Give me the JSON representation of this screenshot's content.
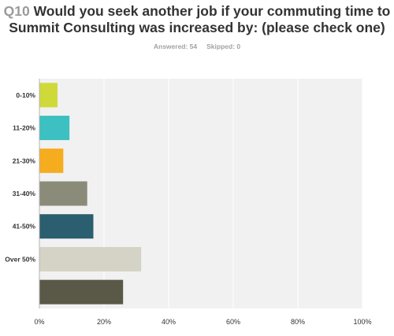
{
  "question": {
    "number": "Q10",
    "text": "Would you seek another job if your commuting time to Summit Consulting was increased by: (please check one)"
  },
  "stats": {
    "answered_label": "Answered: 54",
    "skipped_label": "Skipped: 0"
  },
  "chart_data": {
    "type": "bar",
    "orientation": "horizontal",
    "categories": [
      "0-10%",
      "11-20%",
      "21-30%",
      "31-40%",
      "41-50%",
      "Over 50%",
      ""
    ],
    "values": [
      5.6,
      9.3,
      7.4,
      14.8,
      16.7,
      31.5,
      25.9
    ],
    "colors": [
      "#cfda3a",
      "#3cc0c1",
      "#f5ac1f",
      "#8b8b7a",
      "#2b5e6e",
      "#d4d3c5",
      "#5a5847"
    ],
    "xlim": [
      0,
      100
    ],
    "x_ticks": [
      "0%",
      "20%",
      "40%",
      "60%",
      "80%",
      "100%"
    ],
    "x_tick_values": [
      0,
      20,
      40,
      60,
      80,
      100
    ],
    "grid": true,
    "background": "#f1f1f1",
    "gridline_color": "#ffffff"
  }
}
